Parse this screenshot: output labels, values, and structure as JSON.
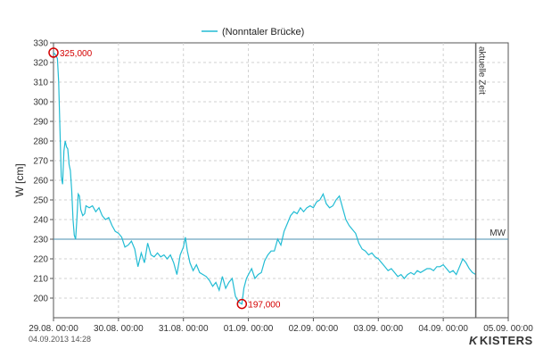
{
  "chart_data": {
    "type": "line",
    "legend": "(Nonntaler Brücke)",
    "ylabel": "W [cm]",
    "ylim": [
      190,
      330
    ],
    "yticks": [
      200,
      210,
      220,
      230,
      240,
      250,
      260,
      270,
      280,
      290,
      300,
      310,
      320,
      330
    ],
    "xlim": [
      0,
      7
    ],
    "xticks": [
      {
        "x": 0,
        "label": "29.08. 00:00"
      },
      {
        "x": 1,
        "label": "30.08. 00:00"
      },
      {
        "x": 2,
        "label": "31.08. 00:00"
      },
      {
        "x": 3,
        "label": "01.09. 00:00"
      },
      {
        "x": 4,
        "label": "02.09. 00:00"
      },
      {
        "x": 5,
        "label": "03.09. 00:00"
      },
      {
        "x": 6,
        "label": "04.09. 00:00"
      },
      {
        "x": 7,
        "label": "05.09. 00:00"
      }
    ],
    "grid": true,
    "legend_position": "top",
    "series_color": "#22bcd4",
    "points": [
      [
        0.0,
        325
      ],
      [
        0.03,
        324
      ],
      [
        0.06,
        322
      ],
      [
        0.08,
        310
      ],
      [
        0.1,
        285
      ],
      [
        0.12,
        262
      ],
      [
        0.14,
        258
      ],
      [
        0.16,
        275
      ],
      [
        0.18,
        280
      ],
      [
        0.2,
        277
      ],
      [
        0.22,
        276
      ],
      [
        0.24,
        268
      ],
      [
        0.26,
        265
      ],
      [
        0.28,
        255
      ],
      [
        0.3,
        240
      ],
      [
        0.32,
        232
      ],
      [
        0.34,
        230
      ],
      [
        0.36,
        240
      ],
      [
        0.38,
        253
      ],
      [
        0.4,
        252
      ],
      [
        0.42,
        245
      ],
      [
        0.45,
        242
      ],
      [
        0.48,
        243
      ],
      [
        0.5,
        247
      ],
      [
        0.55,
        246
      ],
      [
        0.6,
        247
      ],
      [
        0.65,
        244
      ],
      [
        0.7,
        246
      ],
      [
        0.75,
        242
      ],
      [
        0.8,
        240
      ],
      [
        0.85,
        241
      ],
      [
        0.9,
        237
      ],
      [
        0.95,
        234
      ],
      [
        1.0,
        233
      ],
      [
        1.05,
        231
      ],
      [
        1.1,
        226
      ],
      [
        1.15,
        227
      ],
      [
        1.2,
        229
      ],
      [
        1.25,
        225
      ],
      [
        1.3,
        216
      ],
      [
        1.35,
        223
      ],
      [
        1.4,
        218
      ],
      [
        1.45,
        228
      ],
      [
        1.5,
        222
      ],
      [
        1.55,
        221
      ],
      [
        1.6,
        223
      ],
      [
        1.65,
        221
      ],
      [
        1.7,
        222
      ],
      [
        1.75,
        220
      ],
      [
        1.8,
        222
      ],
      [
        1.85,
        218
      ],
      [
        1.9,
        212
      ],
      [
        1.95,
        222
      ],
      [
        2.0,
        226
      ],
      [
        2.03,
        231
      ],
      [
        2.06,
        224
      ],
      [
        2.1,
        218
      ],
      [
        2.15,
        214
      ],
      [
        2.2,
        217
      ],
      [
        2.25,
        213
      ],
      [
        2.3,
        212
      ],
      [
        2.35,
        211
      ],
      [
        2.4,
        209
      ],
      [
        2.45,
        206
      ],
      [
        2.5,
        208
      ],
      [
        2.55,
        204
      ],
      [
        2.6,
        211
      ],
      [
        2.65,
        205
      ],
      [
        2.7,
        208
      ],
      [
        2.75,
        210
      ],
      [
        2.8,
        201
      ],
      [
        2.85,
        198
      ],
      [
        2.9,
        197
      ],
      [
        2.93,
        205
      ],
      [
        2.97,
        210
      ],
      [
        3.0,
        212
      ],
      [
        3.05,
        215
      ],
      [
        3.1,
        210
      ],
      [
        3.15,
        212
      ],
      [
        3.2,
        213
      ],
      [
        3.25,
        219
      ],
      [
        3.3,
        222
      ],
      [
        3.35,
        224
      ],
      [
        3.4,
        224
      ],
      [
        3.45,
        230
      ],
      [
        3.5,
        227
      ],
      [
        3.55,
        234
      ],
      [
        3.6,
        238
      ],
      [
        3.65,
        242
      ],
      [
        3.7,
        244
      ],
      [
        3.75,
        243
      ],
      [
        3.8,
        246
      ],
      [
        3.85,
        244
      ],
      [
        3.9,
        246
      ],
      [
        3.95,
        247
      ],
      [
        4.0,
        246
      ],
      [
        4.05,
        249
      ],
      [
        4.1,
        250
      ],
      [
        4.15,
        253
      ],
      [
        4.2,
        248
      ],
      [
        4.25,
        246
      ],
      [
        4.3,
        247
      ],
      [
        4.35,
        250
      ],
      [
        4.4,
        252
      ],
      [
        4.45,
        246
      ],
      [
        4.5,
        240
      ],
      [
        4.55,
        237
      ],
      [
        4.6,
        235
      ],
      [
        4.65,
        233
      ],
      [
        4.7,
        228
      ],
      [
        4.75,
        225
      ],
      [
        4.8,
        224
      ],
      [
        4.85,
        222
      ],
      [
        4.9,
        223
      ],
      [
        4.95,
        221
      ],
      [
        5.0,
        220
      ],
      [
        5.05,
        218
      ],
      [
        5.1,
        216
      ],
      [
        5.15,
        214
      ],
      [
        5.2,
        215
      ],
      [
        5.25,
        213
      ],
      [
        5.3,
        211
      ],
      [
        5.35,
        212
      ],
      [
        5.4,
        210
      ],
      [
        5.45,
        212
      ],
      [
        5.5,
        213
      ],
      [
        5.55,
        212
      ],
      [
        5.6,
        214
      ],
      [
        5.65,
        213
      ],
      [
        5.7,
        214
      ],
      [
        5.75,
        215
      ],
      [
        5.8,
        215
      ],
      [
        5.85,
        214
      ],
      [
        5.9,
        216
      ],
      [
        5.95,
        216
      ],
      [
        6.0,
        217
      ],
      [
        6.05,
        215
      ],
      [
        6.1,
        213
      ],
      [
        6.15,
        214
      ],
      [
        6.2,
        212
      ],
      [
        6.25,
        216
      ],
      [
        6.3,
        220
      ],
      [
        6.35,
        218
      ],
      [
        6.4,
        215
      ],
      [
        6.45,
        213
      ],
      [
        6.5,
        212
      ]
    ],
    "reference_line": {
      "value": 230,
      "label": "MW"
    },
    "current_time_line": {
      "x": 6.5,
      "label": "aktuelle Zeit"
    },
    "annotations": [
      {
        "x": 0.0,
        "y": 325,
        "label": "325,000"
      },
      {
        "x": 2.9,
        "y": 197,
        "label": "197,000"
      }
    ]
  },
  "footer": {
    "timestamp": "04.09.2013  14:28",
    "brand": "KISTERS"
  }
}
